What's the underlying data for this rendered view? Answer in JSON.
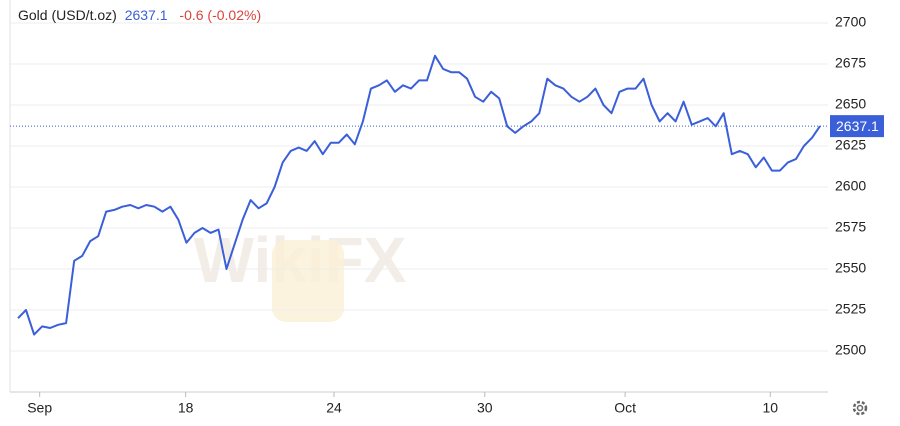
{
  "chart_data": {
    "type": "line",
    "title": "Gold (USD/t.oz)",
    "last_price": 2637.1,
    "change": "-0.6 (-0.02%)",
    "watermark": "WikiFX",
    "color": "#3a5fd9",
    "x": [
      1,
      2,
      3,
      4,
      5,
      6,
      7,
      8,
      9,
      10,
      11,
      12,
      13,
      14,
      15,
      16,
      17,
      18,
      19,
      20,
      21,
      22,
      23,
      24,
      25,
      26,
      27,
      28,
      29,
      30,
      31,
      32,
      33,
      34,
      35,
      36,
      37,
      38,
      39,
      40,
      41,
      42,
      43,
      44,
      45,
      46,
      47,
      48,
      49,
      50,
      51,
      52,
      53,
      54,
      55,
      56,
      57,
      58,
      59,
      60,
      61,
      62,
      63,
      64,
      65,
      66,
      67,
      68,
      69,
      70,
      71,
      72,
      73,
      74,
      75,
      76,
      77,
      78,
      79,
      80,
      81,
      82,
      83,
      84,
      85,
      86,
      87,
      88,
      89,
      90,
      91,
      92,
      93,
      94,
      95,
      96,
      97,
      98,
      99,
      100,
      101
    ],
    "values": [
      2520,
      2525,
      2510,
      2515,
      2514,
      2516,
      2517,
      2555,
      2558,
      2567,
      2570,
      2585,
      2586,
      2588,
      2589,
      2587,
      2589,
      2588,
      2585,
      2588,
      2580,
      2566,
      2572,
      2575,
      2572,
      2574,
      2550,
      2565,
      2580,
      2592,
      2587,
      2590,
      2600,
      2615,
      2622,
      2624,
      2622,
      2628,
      2620,
      2627,
      2627,
      2632,
      2626,
      2640,
      2660,
      2662,
      2665,
      2658,
      2662,
      2660,
      2665,
      2665,
      2680,
      2672,
      2670,
      2670,
      2666,
      2655,
      2652,
      2658,
      2654,
      2637,
      2633,
      2637,
      2640,
      2645,
      2666,
      2662,
      2660,
      2655,
      2652,
      2655,
      2660,
      2650,
      2645,
      2658,
      2660,
      2660,
      2666,
      2650,
      2640,
      2645,
      2640,
      2652,
      2638,
      2640,
      2642,
      2637,
      2645,
      2620,
      2622,
      2620,
      2612,
      2618,
      2610,
      2610,
      2615,
      2617,
      2625,
      2630,
      2637.1
    ],
    "xlim": [
      0,
      102
    ],
    "xticks": [
      {
        "value": 3.7,
        "label": "Sep"
      },
      {
        "value": 21.9,
        "label": "18"
      },
      {
        "value": 40.4,
        "label": "24"
      },
      {
        "value": 59.2,
        "label": "30"
      },
      {
        "value": 76.7,
        "label": "Oct"
      },
      {
        "value": 94.8,
        "label": "10"
      }
    ],
    "ylim": [
      2475,
      2714
    ],
    "yticks": [
      2500,
      2525,
      2550,
      2575,
      2600,
      2625,
      2650,
      2675,
      2700
    ],
    "grid": true
  }
}
